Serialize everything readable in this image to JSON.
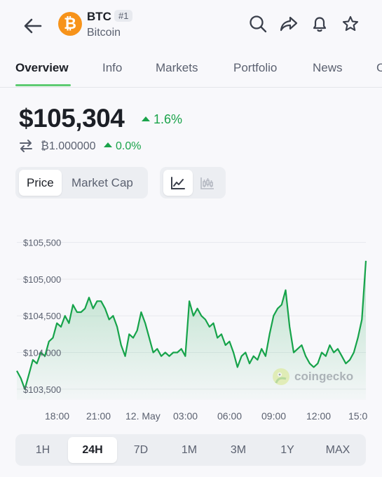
{
  "header": {
    "symbol": "BTC",
    "rank": "#1",
    "name": "Bitcoin",
    "coin_logo_glyph": "₿",
    "icons": [
      "back-arrow-icon",
      "search-icon",
      "share-icon",
      "bell-icon",
      "star-icon"
    ]
  },
  "tabs": [
    {
      "label": "Overview",
      "active": true
    },
    {
      "label": "Info"
    },
    {
      "label": "Markets"
    },
    {
      "label": "Portfolio"
    },
    {
      "label": "News"
    },
    {
      "label": "C"
    }
  ],
  "price": {
    "usd": "$105,304",
    "usd_change": "1.6%",
    "btc": "₿1.000000",
    "btc_change": "0.0%"
  },
  "toggles": {
    "metric": [
      "Price",
      "Market Cap"
    ],
    "selected_metric": "Price",
    "chart_style": [
      "line-chart-icon",
      "candlestick-icon"
    ],
    "selected_style": "line-chart-icon"
  },
  "chart_data": {
    "type": "area",
    "y_ticks": [
      "$105,500",
      "$105,000",
      "$104,500",
      "$104,000",
      "$103,500"
    ],
    "x_ticks": [
      "18:00",
      "21:00",
      "12. May",
      "03:00",
      "06:00",
      "09:00",
      "12:00",
      "15:0"
    ],
    "ylim": [
      103450,
      105650
    ],
    "line_color": "#16a34a",
    "series": [
      {
        "values": [
          103750,
          103650,
          103500,
          103700,
          103900,
          103850,
          104000,
          103950,
          104150,
          104200,
          104400,
          104350,
          104500,
          104400,
          104650,
          104550,
          104550,
          104600,
          104750,
          104600,
          104700,
          104700,
          104600,
          104450,
          104500,
          104350,
          104100,
          103950,
          104250,
          104200,
          104300,
          104550,
          104400,
          104200,
          104000,
          104050,
          103950,
          104000,
          103950,
          104000,
          104000,
          104050,
          103950,
          104700,
          104500,
          104600,
          104500,
          104450,
          104350,
          104400,
          104200,
          104250,
          104100,
          104150,
          104000,
          103800,
          103950,
          104000,
          103850,
          103950,
          103900,
          104050,
          103950,
          104250,
          104500,
          104600,
          104650,
          104850,
          104350,
          104000,
          104050,
          104100,
          103950,
          103850,
          103800,
          103850,
          104000,
          103950,
          104100,
          104000,
          104050,
          103950,
          103850,
          103900,
          104000,
          104200,
          104450,
          105250
        ]
      }
    ]
  },
  "watermark": "coingecko",
  "ranges": [
    "1H",
    "24H",
    "7D",
    "1M",
    "3M",
    "1Y",
    "MAX"
  ],
  "selected_range": "24H"
}
